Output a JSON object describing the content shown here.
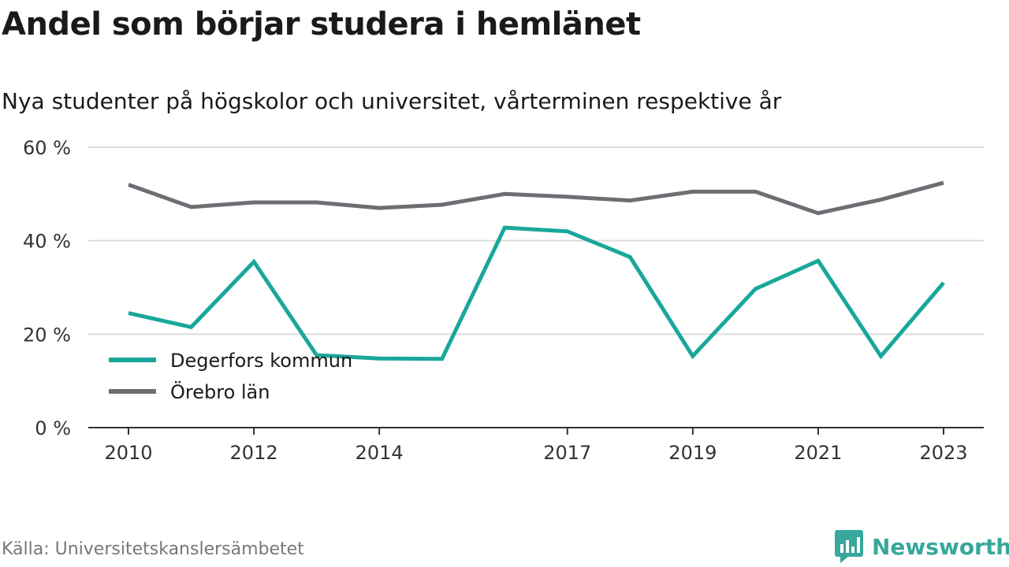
{
  "header": {
    "title": "Andel som börjar studera i hemlänet",
    "subtitle": "Nya studenter på högskolor och universitet, vårterminen respektive år"
  },
  "footer": {
    "source": "Källa: Universitetskanslersämbetet",
    "logo_text": "Newsworthy"
  },
  "colors": {
    "degerfors": "#1aa79b",
    "orebro": "#6e6d73",
    "grid": "#dcdcdc",
    "axis": "#333333",
    "brand": "#37a89b"
  },
  "chart_data": {
    "type": "line",
    "x": [
      2010,
      2011,
      2012,
      2013,
      2014,
      2015,
      2016,
      2017,
      2018,
      2019,
      2020,
      2021,
      2022,
      2023
    ],
    "x_tick_labels": [
      "2010",
      "2012",
      "2014",
      "2017",
      "2019",
      "2021",
      "2023"
    ],
    "y_tick_labels": [
      "0 %",
      "20 %",
      "40 %",
      "60 %"
    ],
    "ylim": [
      0,
      60
    ],
    "y_ticks": [
      0,
      20,
      40,
      60
    ],
    "grid": true,
    "legend_position": "bottom-left",
    "series": [
      {
        "name": "Degerfors kommun",
        "color": "#1aa79b",
        "values": [
          24.5,
          21.5,
          35.5,
          15.5,
          14.8,
          14.7,
          42.8,
          42.0,
          36.5,
          15.3,
          29.7,
          35.7,
          15.3,
          31.0
        ]
      },
      {
        "name": "Örebro län",
        "color": "#6e6d73",
        "values": [
          52.0,
          47.2,
          48.2,
          48.2,
          47.0,
          47.7,
          50.0,
          49.4,
          48.6,
          50.5,
          50.5,
          45.9,
          48.8,
          52.4
        ]
      }
    ]
  }
}
